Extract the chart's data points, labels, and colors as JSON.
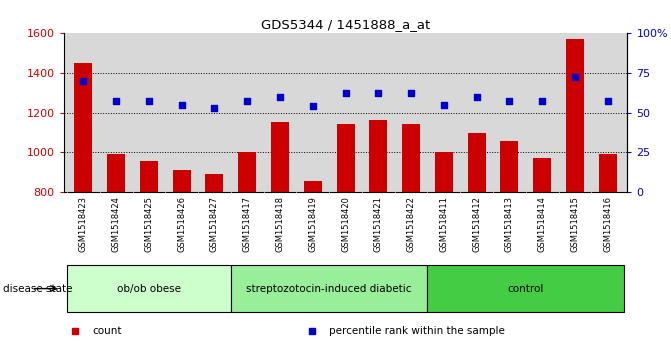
{
  "title": "GDS5344 / 1451888_a_at",
  "categories": [
    "GSM1518423",
    "GSM1518424",
    "GSM1518425",
    "GSM1518426",
    "GSM1518427",
    "GSM1518417",
    "GSM1518418",
    "GSM1518419",
    "GSM1518420",
    "GSM1518421",
    "GSM1518422",
    "GSM1518411",
    "GSM1518412",
    "GSM1518413",
    "GSM1518414",
    "GSM1518415",
    "GSM1518416"
  ],
  "counts": [
    1450,
    992,
    955,
    910,
    893,
    1000,
    1155,
    855,
    1145,
    1165,
    1145,
    1003,
    1095,
    1055,
    970,
    1570,
    992
  ],
  "percentiles": [
    70,
    57,
    57,
    55,
    53,
    57,
    60,
    54,
    62,
    62,
    62,
    55,
    60,
    57,
    57,
    72,
    57
  ],
  "ylim_left": [
    800,
    1600
  ],
  "yticks_left": [
    800,
    1000,
    1200,
    1400,
    1600
  ],
  "ylim_right": [
    0,
    100
  ],
  "yticks_right": [
    0,
    25,
    50,
    75,
    100
  ],
  "right_yticklabels": [
    "0",
    "25",
    "50",
    "75",
    "100%"
  ],
  "bar_color": "#cc0000",
  "dot_color": "#0000cc",
  "groups": [
    {
      "label": "ob/ob obese",
      "start": 0,
      "end": 5
    },
    {
      "label": "streptozotocin-induced diabetic",
      "start": 5,
      "end": 11
    },
    {
      "label": "control",
      "start": 11,
      "end": 17
    }
  ],
  "group_colors": [
    "#ccffcc",
    "#99ee99",
    "#44cc44"
  ],
  "disease_state_label": "disease state",
  "legend_items": [
    {
      "label": "count",
      "color": "#cc0000"
    },
    {
      "label": "percentile rank within the sample",
      "color": "#0000cc"
    }
  ],
  "fig_bg_color": "#ffffff",
  "plot_bg_color": "#d8d8d8",
  "xtick_bg_color": "#d0d0d0",
  "grid_yticks": [
    1000,
    1200,
    1400
  ]
}
